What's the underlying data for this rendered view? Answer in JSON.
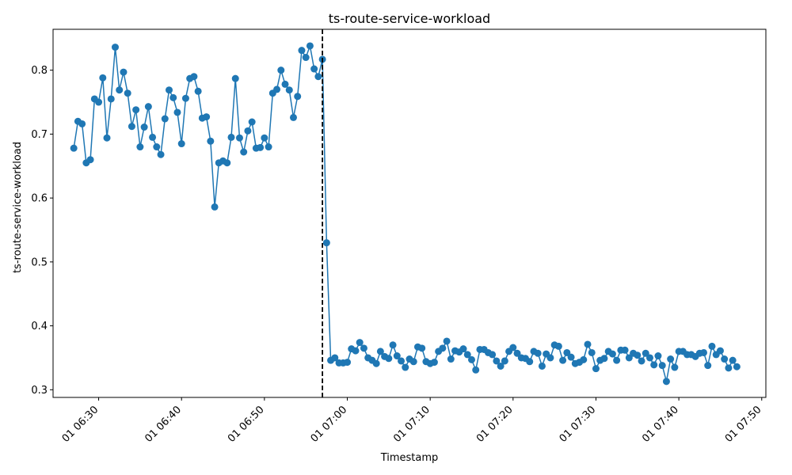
{
  "chart_data": {
    "type": "line",
    "title": "ts-route-service-workload",
    "xlabel": "Timestamp",
    "ylabel": "ts-route-service-workload",
    "x_start": "06:27:00",
    "x_step_minutes": 0.5,
    "xlim": [
      "06:24:30",
      "07:50:30"
    ],
    "ylim": [
      0.288,
      0.864
    ],
    "xticks": [
      {
        "time": "06:30",
        "label": "01 06:30"
      },
      {
        "time": "06:40",
        "label": "01 06:40"
      },
      {
        "time": "06:50",
        "label": "01 06:50"
      },
      {
        "time": "07:00",
        "label": "01 07:00"
      },
      {
        "time": "07:10",
        "label": "01 07:10"
      },
      {
        "time": "07:20",
        "label": "01 07:20"
      },
      {
        "time": "07:30",
        "label": "01 07:30"
      },
      {
        "time": "07:40",
        "label": "01 07:40"
      },
      {
        "time": "07:50",
        "label": "01 07:50"
      }
    ],
    "yticks": [
      0.3,
      0.4,
      0.5,
      0.6,
      0.7,
      0.8
    ],
    "vline": {
      "time": "06:57:00",
      "style": "dashed",
      "color": "#000000"
    },
    "grid": false,
    "series": [
      {
        "color": "#1f77b4",
        "marker": "circle",
        "values": [
          0.678,
          0.72,
          0.716,
          0.655,
          0.66,
          0.755,
          0.75,
          0.788,
          0.694,
          0.755,
          0.836,
          0.769,
          0.797,
          0.764,
          0.712,
          0.738,
          0.68,
          0.711,
          0.743,
          0.695,
          0.68,
          0.668,
          0.724,
          0.769,
          0.757,
          0.734,
          0.685,
          0.756,
          0.787,
          0.79,
          0.767,
          0.725,
          0.727,
          0.689,
          0.586,
          0.655,
          0.658,
          0.655,
          0.695,
          0.787,
          0.694,
          0.672,
          0.705,
          0.719,
          0.678,
          0.679,
          0.694,
          0.68,
          0.764,
          0.77,
          0.8,
          0.778,
          0.769,
          0.726,
          0.759,
          0.831,
          0.82,
          0.838,
          0.802,
          0.79,
          0.817,
          0.53,
          0.346,
          0.35,
          0.342,
          0.342,
          0.343,
          0.364,
          0.361,
          0.374,
          0.365,
          0.35,
          0.346,
          0.341,
          0.36,
          0.352,
          0.349,
          0.37,
          0.353,
          0.345,
          0.335,
          0.348,
          0.344,
          0.367,
          0.365,
          0.344,
          0.341,
          0.343,
          0.36,
          0.365,
          0.376,
          0.348,
          0.361,
          0.359,
          0.364,
          0.355,
          0.347,
          0.331,
          0.363,
          0.363,
          0.358,
          0.355,
          0.345,
          0.337,
          0.345,
          0.36,
          0.366,
          0.357,
          0.35,
          0.349,
          0.344,
          0.36,
          0.357,
          0.337,
          0.356,
          0.35,
          0.37,
          0.368,
          0.346,
          0.358,
          0.351,
          0.341,
          0.343,
          0.347,
          0.371,
          0.358,
          0.333,
          0.346,
          0.349,
          0.36,
          0.356,
          0.346,
          0.362,
          0.362,
          0.35,
          0.357,
          0.354,
          0.345,
          0.357,
          0.35,
          0.339,
          0.353,
          0.338,
          0.313,
          0.348,
          0.335,
          0.36,
          0.36,
          0.355,
          0.355,
          0.352,
          0.357,
          0.358,
          0.338,
          0.368,
          0.355,
          0.361,
          0.348,
          0.334,
          0.346,
          0.336
        ]
      }
    ]
  }
}
